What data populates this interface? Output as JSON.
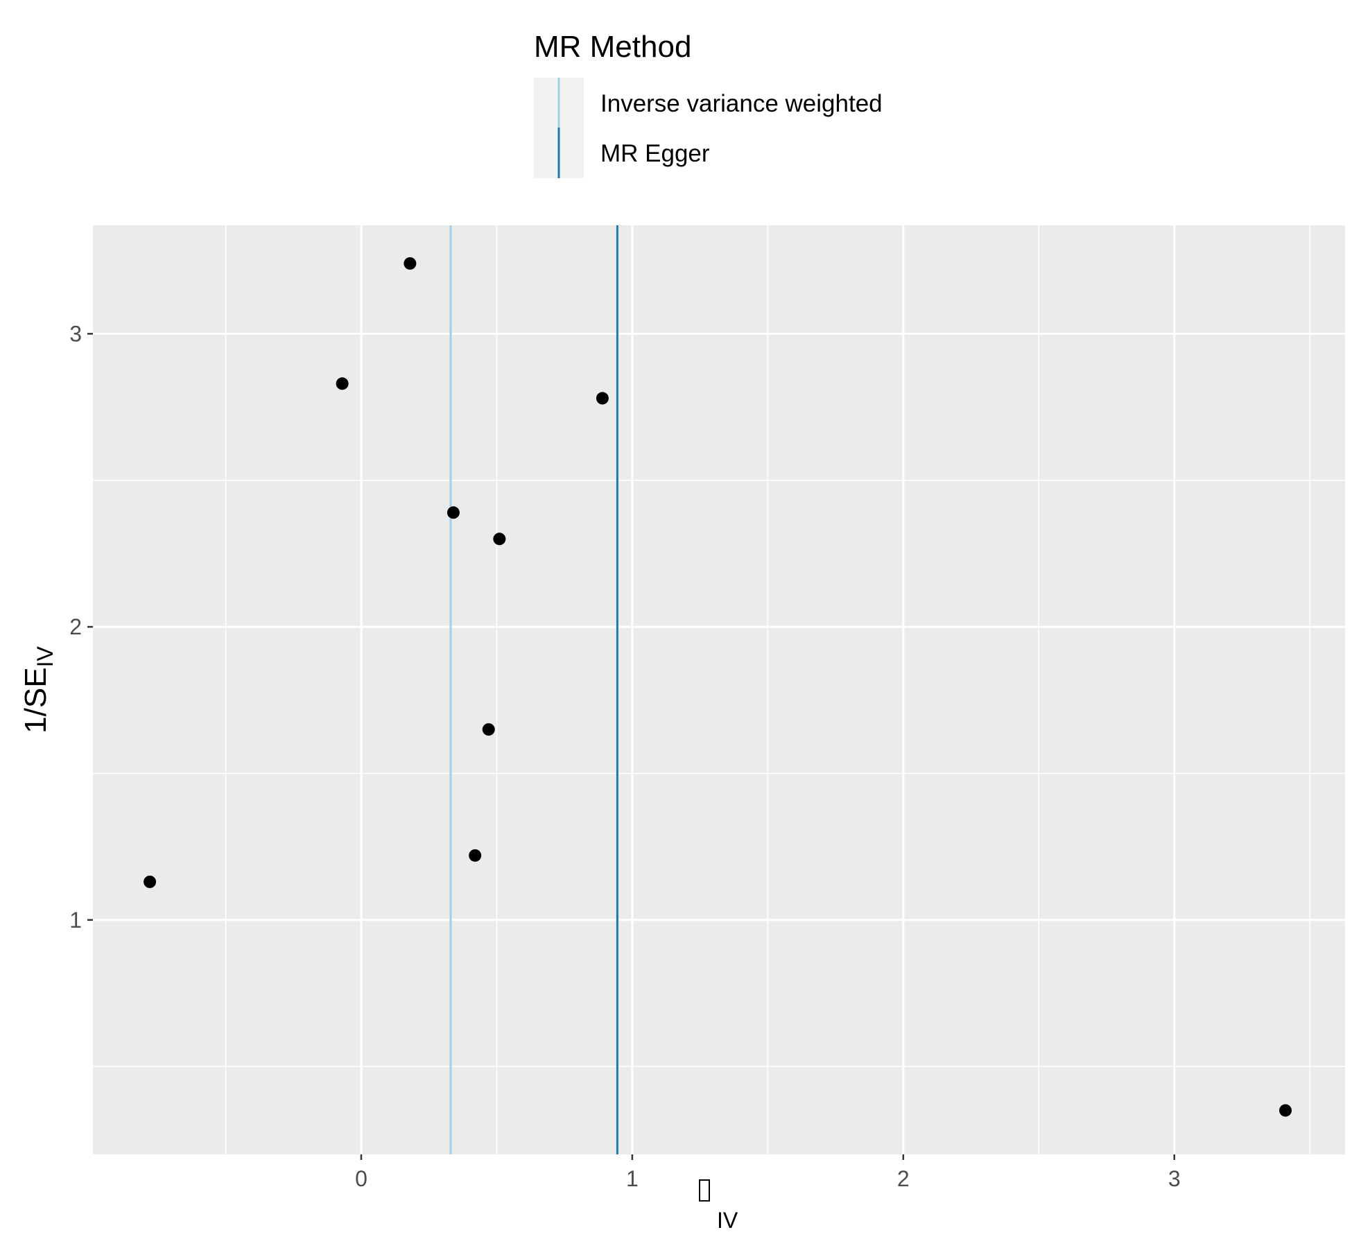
{
  "chart_data": {
    "type": "scatter",
    "title": "",
    "xlabel": {
      "main": "",
      "subscript": "IV"
    },
    "ylabel": {
      "main": "1/SE",
      "subscript": "IV"
    },
    "xlim": [
      -0.99,
      3.63
    ],
    "ylim": [
      0.2,
      3.37
    ],
    "x_ticks": [
      0,
      1,
      2,
      3
    ],
    "y_ticks": [
      1,
      2,
      3
    ],
    "x_minor_ticks": [
      -0.5,
      0.5,
      1.5,
      2.5,
      3.5
    ],
    "y_minor_ticks": [
      0.5,
      1.5,
      2.5
    ],
    "grid": true,
    "points": [
      {
        "x": -0.78,
        "y": 1.13
      },
      {
        "x": -0.07,
        "y": 2.83
      },
      {
        "x": 0.18,
        "y": 3.24
      },
      {
        "x": 0.34,
        "y": 2.39
      },
      {
        "x": 0.42,
        "y": 1.22
      },
      {
        "x": 0.47,
        "y": 1.65
      },
      {
        "x": 0.51,
        "y": 2.3
      },
      {
        "x": 0.89,
        "y": 2.78
      },
      {
        "x": 3.41,
        "y": 0.35
      }
    ],
    "vlines": [
      {
        "name": "Inverse variance weighted",
        "x": 0.33,
        "color": "#a6cee3"
      },
      {
        "name": "MR Egger",
        "x": 0.945,
        "color": "#1f78b4"
      }
    ],
    "legend": {
      "title": "MR Method",
      "position": "top",
      "entries": [
        "Inverse variance weighted",
        "MR Egger"
      ]
    },
    "colors": {
      "panel": "#ebebeb",
      "grid": "#ffffff",
      "point": "#000000",
      "tick_text": "#4d4d4d"
    }
  }
}
